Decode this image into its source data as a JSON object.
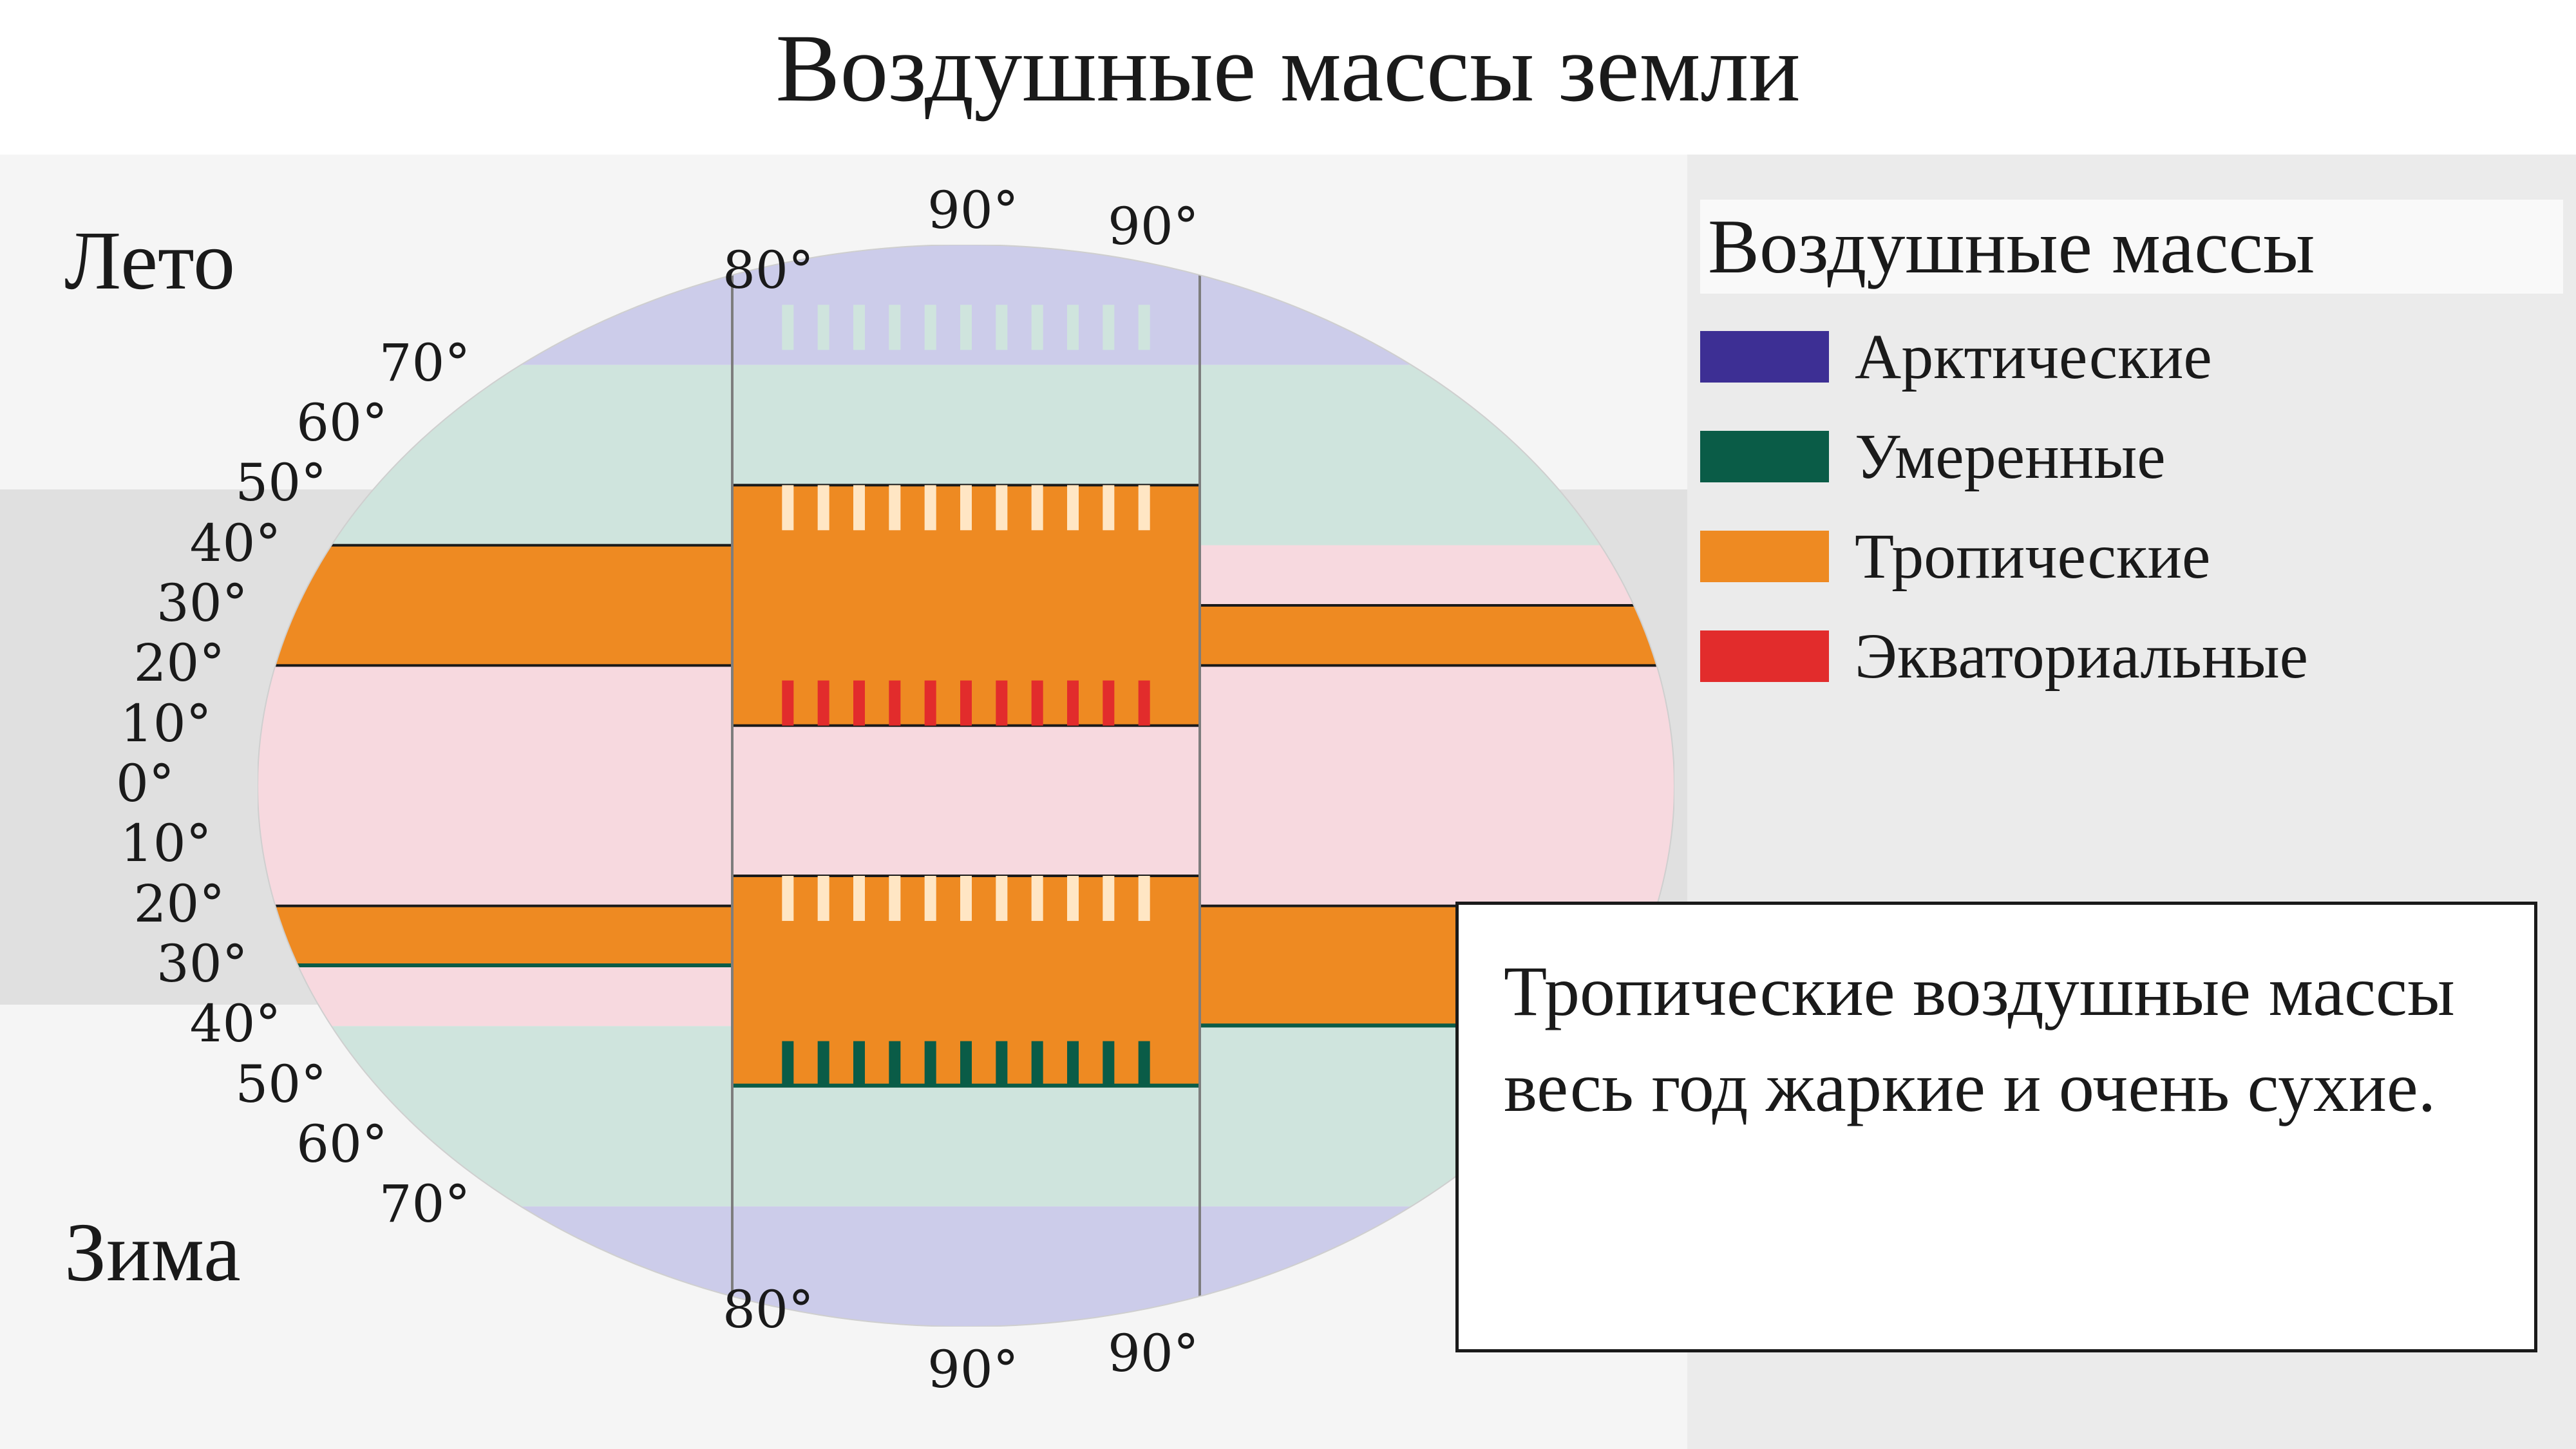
{
  "title": "Воздушные массы земли",
  "seasons": {
    "summer": "Лето",
    "winter": "Зима"
  },
  "legend": {
    "title": "Воздушные массы",
    "items": [
      {
        "label": "Арктические",
        "color": "#3d2f94"
      },
      {
        "label": "Умеренные",
        "color": "#0a5c47"
      },
      {
        "label": "Тропические",
        "color": "#ee8a22"
      },
      {
        "label": "Экваториальные",
        "color": "#e22c2c"
      }
    ]
  },
  "infobox": "Тропические воздушные массы весь год жаркие и очень сухие.",
  "globe": {
    "background_bands_pale": {
      "arctic": "#ccccea",
      "temperate": "#cfe4dd",
      "equatorial": "#f7d9df"
    },
    "solid_colors": {
      "arctic": "#3d2f94",
      "temperate": "#0a5c47",
      "tropical": "#ee8a22",
      "equatorial": "#e22c2c",
      "cream_tick": "#ffe6c4",
      "stroke": "#1a1a1a"
    },
    "latitude_bounds_deg": {
      "arctic_top": [
        70,
        90
      ],
      "temperate_north": [
        40,
        70
      ],
      "tropical_north": [
        20,
        40
      ],
      "equatorial": [
        -20,
        20
      ],
      "tropical_south": [
        -40,
        -20
      ],
      "temperate_south": [
        -70,
        -40
      ],
      "arctic_bottom": [
        -90,
        -70
      ]
    }
  },
  "lat_labels": [
    {
      "deg": 90,
      "text": "90°"
    },
    {
      "deg": 80,
      "text": "80°"
    },
    {
      "deg": 70,
      "text": "70°"
    },
    {
      "deg": 60,
      "text": "60°"
    },
    {
      "deg": 50,
      "text": "50°"
    },
    {
      "deg": 40,
      "text": "40°"
    },
    {
      "deg": 30,
      "text": "30°"
    },
    {
      "deg": 20,
      "text": "20°"
    },
    {
      "deg": 10,
      "text": "10°"
    },
    {
      "deg": 0,
      "text": "0°"
    }
  ],
  "right_top_90": "90°",
  "right_bottom_90": "90°"
}
